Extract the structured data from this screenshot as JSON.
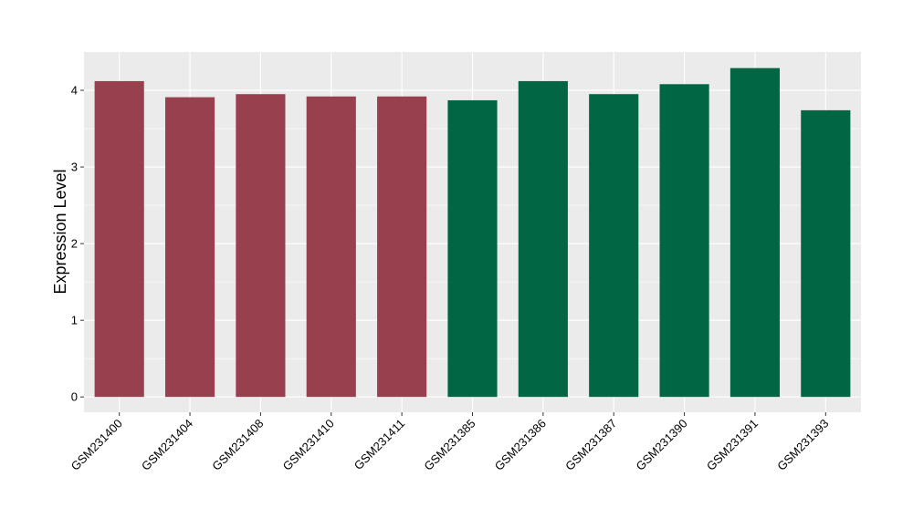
{
  "chart_data": {
    "type": "bar",
    "title": "",
    "xlabel": "",
    "ylabel": "Expression Level",
    "ylim": [
      -0.2,
      4.5
    ],
    "yticks": [
      0,
      1,
      2,
      3,
      4
    ],
    "grid": true,
    "legend": "none",
    "categories": [
      "GSM231400",
      "GSM231404",
      "GSM231408",
      "GSM231410",
      "GSM231411",
      "GSM231385",
      "GSM231386",
      "GSM231387",
      "GSM231390",
      "GSM231391",
      "GSM231393"
    ],
    "values": [
      4.12,
      3.91,
      3.95,
      3.92,
      3.92,
      3.87,
      4.12,
      3.95,
      4.08,
      4.29,
      3.74
    ],
    "bar_colors": [
      "#99404F",
      "#99404F",
      "#99404F",
      "#99404F",
      "#99404F",
      "#006644",
      "#006644",
      "#006644",
      "#006644",
      "#006644",
      "#006644"
    ],
    "panel_color": "#EBEBEB",
    "grid_color": "#FFFFFF"
  }
}
